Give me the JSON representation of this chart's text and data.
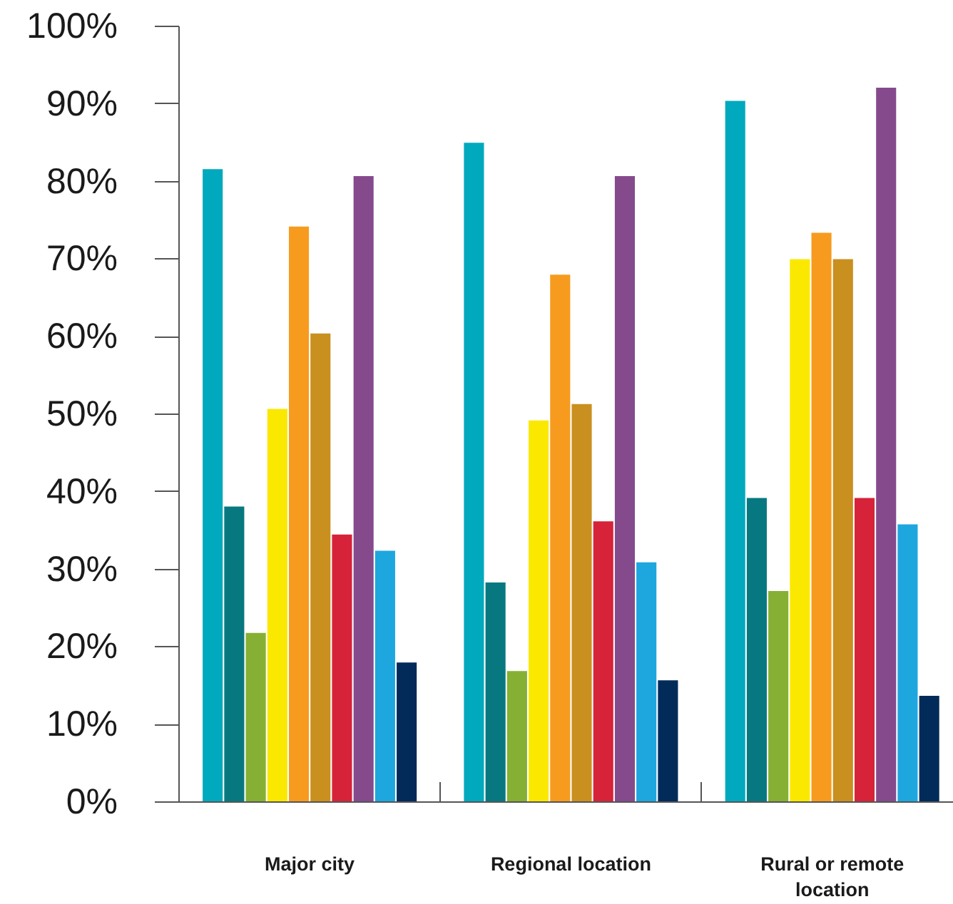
{
  "chart_data": {
    "type": "bar",
    "categories": [
      "Major city",
      "Regional location",
      "Rural or remote location"
    ],
    "series": [
      {
        "color": "#00a9bd",
        "values": [
          81.6,
          85.0,
          90.4
        ]
      },
      {
        "color": "#087880",
        "values": [
          38.1,
          28.3,
          39.2
        ]
      },
      {
        "color": "#86b034",
        "values": [
          21.8,
          16.9,
          27.2
        ]
      },
      {
        "color": "#fbe800",
        "values": [
          50.7,
          49.2,
          70.0
        ]
      },
      {
        "color": "#f79b1f",
        "values": [
          74.2,
          68.0,
          73.4
        ]
      },
      {
        "color": "#c98f1f",
        "values": [
          60.4,
          51.3,
          70.0
        ]
      },
      {
        "color": "#d62339",
        "values": [
          34.5,
          36.2,
          39.2
        ]
      },
      {
        "color": "#854a8c",
        "values": [
          80.7,
          80.7,
          92.1
        ]
      },
      {
        "color": "#1ea6df",
        "values": [
          32.4,
          30.9,
          35.8
        ]
      },
      {
        "color": "#022b5a",
        "values": [
          18.0,
          15.7,
          13.7
        ]
      }
    ],
    "ylim": [
      0,
      100
    ],
    "yticks": [
      {
        "value": 0,
        "label": "0%"
      },
      {
        "value": 10,
        "label": "10%"
      },
      {
        "value": 20,
        "label": "20%"
      },
      {
        "value": 30,
        "label": "30%"
      },
      {
        "value": 40,
        "label": "40%"
      },
      {
        "value": 50,
        "label": "50%"
      },
      {
        "value": 60,
        "label": "60%"
      },
      {
        "value": 70,
        "label": "70%"
      },
      {
        "value": 80,
        "label": "80%"
      },
      {
        "value": 90,
        "label": "90%"
      },
      {
        "value": 100,
        "label": "100%"
      }
    ],
    "grid": false
  }
}
